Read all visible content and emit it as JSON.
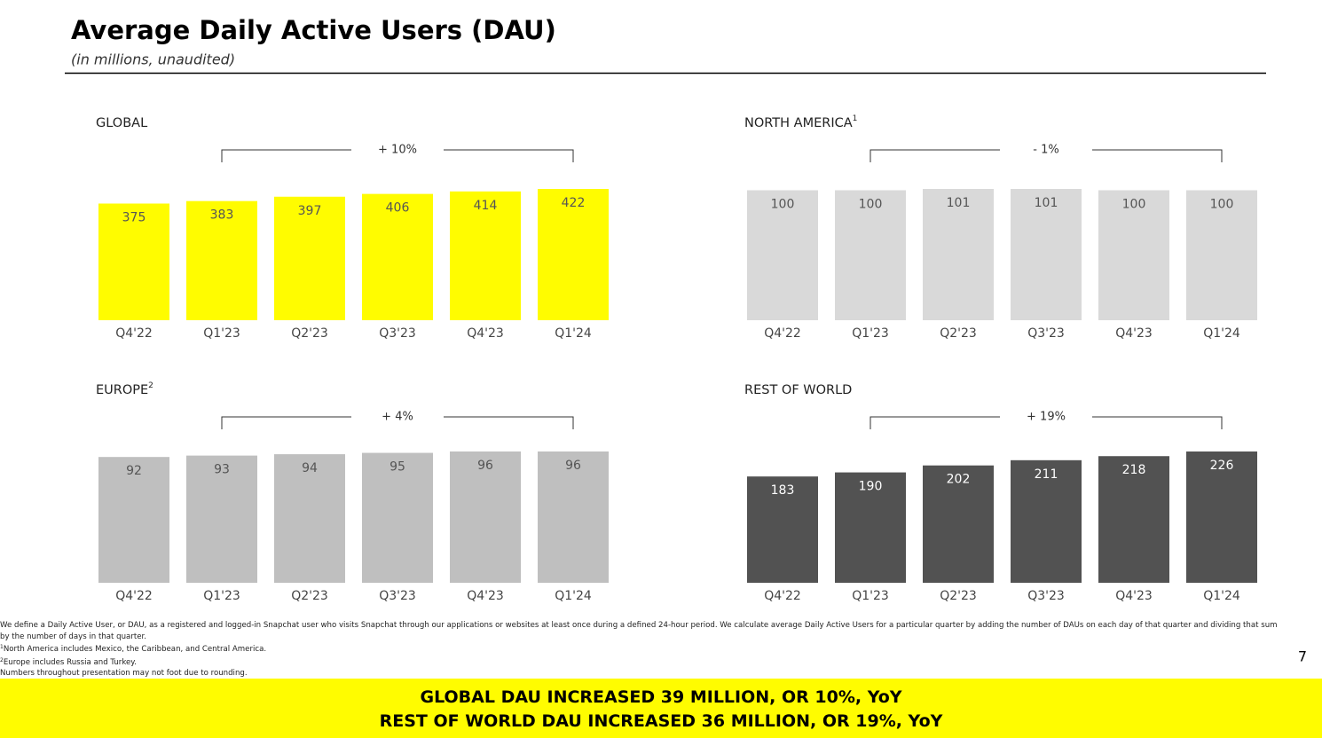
{
  "title": "Average Daily Active Users (DAU)",
  "subtitle": "(in millions, unaudited)",
  "chart_data": [
    {
      "type": "bar",
      "title": "GLOBAL",
      "annotation": "+ 10%",
      "categories": [
        "Q4'22",
        "Q1'23",
        "Q2'23",
        "Q3'23",
        "Q4'23",
        "Q1'24"
      ],
      "values": [
        375,
        383,
        397,
        406,
        414,
        422
      ],
      "color": "#fffc00",
      "label_color": "#555555"
    },
    {
      "type": "bar",
      "title": "NORTH AMERICA",
      "title_sup": "1",
      "annotation": "- 1%",
      "categories": [
        "Q4'22",
        "Q1'23",
        "Q2'23",
        "Q3'23",
        "Q4'23",
        "Q1'24"
      ],
      "values": [
        100,
        100,
        101,
        101,
        100,
        100
      ],
      "color": "#d9d9d9",
      "label_color": "#555555"
    },
    {
      "type": "bar",
      "title": "EUROPE",
      "title_sup": "2",
      "annotation": "+ 4%",
      "categories": [
        "Q4'22",
        "Q1'23",
        "Q2'23",
        "Q3'23",
        "Q4'23",
        "Q1'24"
      ],
      "values": [
        92,
        93,
        94,
        95,
        96,
        96
      ],
      "color": "#bfbfbf",
      "label_color": "#555555"
    },
    {
      "type": "bar",
      "title": "REST OF WORLD",
      "annotation": "+ 19%",
      "categories": [
        "Q4'22",
        "Q1'23",
        "Q2'23",
        "Q3'23",
        "Q4'23",
        "Q1'24"
      ],
      "values": [
        183,
        190,
        202,
        211,
        218,
        226
      ],
      "color": "#525252",
      "label_color": "#ffffff"
    }
  ],
  "notes": [
    {
      "text": "We define a Daily Active User, or DAU, as a registered and logged-in Snapchat user who visits Snapchat through our applications or websites at least once during a defined 24-hour period. We calculate average Daily Active Users for a particular quarter by adding the number of DAUs on each day of that quarter and dividing that sum by the number of days in that quarter."
    },
    {
      "sup": "1",
      "text": "North America includes Mexico, the Caribbean, and Central America."
    },
    {
      "sup": "2",
      "text": "Europe includes Russia and Turkey."
    },
    {
      "text": "Numbers throughout presentation may not foot due to rounding."
    }
  ],
  "page_number": "7",
  "banner": [
    "GLOBAL DAU INCREASED 39 MILLION, OR 10%, YoY",
    "REST OF WORLD DAU INCREASED 36 MILLION, OR 19%, YoY"
  ]
}
